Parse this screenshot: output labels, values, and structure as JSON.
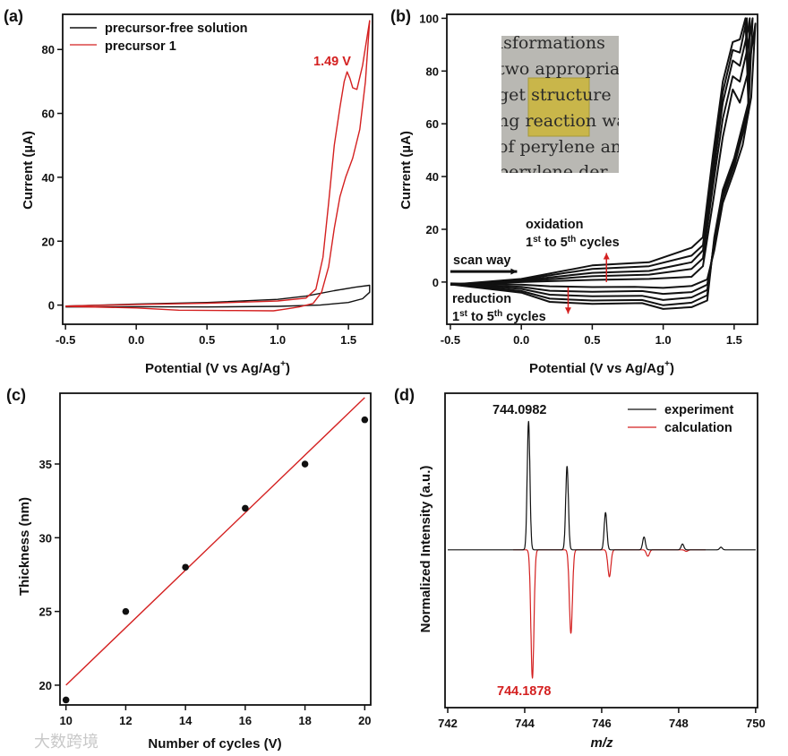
{
  "colors": {
    "black": "#111111",
    "red": "#d42020",
    "photo_bg": "#b9b8b3",
    "film": "#c9b64a"
  },
  "panel_labels": {
    "a": "(a)",
    "b": "(b)",
    "c": "(c)",
    "d": "(d)"
  },
  "watermark": "大数跨境",
  "chart_data": [
    {
      "id": "a",
      "type": "line",
      "xlabel": {
        "main": "Potential (V vs Ag/Ag",
        "sup": "+",
        "end": ")"
      },
      "ylabel": "Current (µA)",
      "xlim": [
        -0.52,
        1.67
      ],
      "ylim": [
        -6,
        91
      ],
      "xticks": [
        -0.5,
        0,
        0.5,
        1.0,
        1.5
      ],
      "xtick_labels": [
        "-0.5",
        "0.0",
        "0.5",
        "1.0",
        "1.5"
      ],
      "yticks": [
        0,
        20,
        40,
        60,
        80
      ],
      "ytick_labels": [
        "0",
        "20",
        "40",
        "60",
        "80"
      ],
      "legend": {
        "placement": "top-left",
        "entries": [
          "precursor-free solution",
          "precursor 1"
        ]
      },
      "annotation": "1.49 V",
      "series": [
        {
          "name": "precursor-free solution",
          "color": "#111111",
          "points": [
            [
              -0.5,
              -0.3
            ],
            [
              0,
              0.3
            ],
            [
              0.5,
              0.8
            ],
            [
              1.0,
              1.8
            ],
            [
              1.2,
              2.8
            ],
            [
              1.4,
              4.5
            ],
            [
              1.55,
              5.6
            ],
            [
              1.65,
              6.2
            ],
            [
              1.65,
              4
            ],
            [
              1.6,
              2
            ],
            [
              1.5,
              0.8
            ],
            [
              1.3,
              0
            ],
            [
              1.0,
              -0.4
            ],
            [
              0.5,
              -0.6
            ],
            [
              0,
              -0.5
            ],
            [
              -0.5,
              -0.6
            ]
          ]
        },
        {
          "name": "precursor 1",
          "color": "#d42020",
          "points": [
            [
              -0.5,
              -0.3
            ],
            [
              0,
              0.2
            ],
            [
              0.5,
              0.6
            ],
            [
              1.0,
              1.3
            ],
            [
              1.2,
              2.2
            ],
            [
              1.27,
              5
            ],
            [
              1.32,
              15
            ],
            [
              1.36,
              32
            ],
            [
              1.4,
              50
            ],
            [
              1.44,
              62
            ],
            [
              1.47,
              70
            ],
            [
              1.49,
              73
            ],
            [
              1.51,
              71
            ],
            [
              1.53,
              68
            ],
            [
              1.56,
              67.5
            ],
            [
              1.6,
              75
            ],
            [
              1.65,
              89
            ],
            [
              1.62,
              70
            ],
            [
              1.58,
              55
            ],
            [
              1.53,
              46
            ],
            [
              1.48,
              40
            ],
            [
              1.44,
              34
            ],
            [
              1.4,
              24
            ],
            [
              1.36,
              12
            ],
            [
              1.31,
              4
            ],
            [
              1.25,
              0.5
            ],
            [
              1.15,
              -0.6
            ],
            [
              1.05,
              -1.3
            ],
            [
              0.97,
              -1.8
            ],
            [
              0.7,
              -1.7
            ],
            [
              0.3,
              -1.6
            ],
            [
              0,
              -0.9
            ],
            [
              -0.5,
              -0.4
            ]
          ]
        }
      ]
    },
    {
      "id": "b",
      "type": "line",
      "xlabel": {
        "main": "Potential (V vs Ag/Ag",
        "sup": "+",
        "end": ")"
      },
      "ylabel": "Current (µA)",
      "xlim": [
        -0.525,
        1.665
      ],
      "ylim": [
        -16,
        101.5
      ],
      "xticks": [
        -0.5,
        0,
        0.5,
        1.0,
        1.5
      ],
      "xtick_labels": [
        "-0.5",
        "0.0",
        "0.5",
        "1.0",
        "1.5"
      ],
      "yticks": [
        0,
        20,
        40,
        60,
        80,
        100
      ],
      "ytick_labels": [
        "0",
        "20",
        "40",
        "60",
        "80",
        "100"
      ],
      "annotations": {
        "oxidation": "oxidation",
        "reduction": "reduction",
        "cycles": {
          "n1": "1",
          "s1": "st",
          "mid": " to 5",
          "s2": "th",
          "end": " cycles"
        },
        "scan_way": "scan way"
      },
      "arrows": {
        "oxidation": {
          "x": 0.6,
          "from": 0,
          "to": 11
        },
        "reduction": {
          "x": 0.33,
          "from": -2,
          "to": -12
        },
        "scan": {
          "y": 0.9,
          "from": -0.5,
          "to": -0.03
        }
      },
      "inset_photo_text": [
        "isformations",
        "two appropria",
        "get  structure",
        "ng reaction wa",
        "of perylene an",
        "perylene  der"
      ],
      "series": [
        {
          "name": "cycle 1",
          "points": [
            [
              -0.5,
              -1
            ],
            [
              0,
              0
            ],
            [
              0.5,
              0.8
            ],
            [
              0.9,
              1.2
            ],
            [
              1.2,
              2
            ],
            [
              1.28,
              6
            ],
            [
              1.35,
              30
            ],
            [
              1.42,
              55
            ],
            [
              1.49,
              73
            ],
            [
              1.54,
              68
            ],
            [
              1.6,
              80
            ],
            [
              1.65,
              98
            ],
            [
              1.62,
              70
            ],
            [
              1.56,
              52
            ],
            [
              1.5,
              42
            ],
            [
              1.42,
              30
            ],
            [
              1.36,
              12
            ],
            [
              1.31,
              1
            ],
            [
              1.2,
              -1.5
            ],
            [
              1.0,
              -2.2
            ],
            [
              0.8,
              -1.8
            ],
            [
              0.5,
              -1.9
            ],
            [
              0.2,
              -1.6
            ],
            [
              0,
              -1
            ],
            [
              -0.5,
              -0.5
            ]
          ]
        },
        {
          "name": "cycle 2",
          "points": [
            [
              -0.5,
              -1
            ],
            [
              0,
              0.3
            ],
            [
              0.5,
              2.2
            ],
            [
              0.9,
              2.8
            ],
            [
              1.2,
              5
            ],
            [
              1.28,
              9
            ],
            [
              1.35,
              36
            ],
            [
              1.42,
              62
            ],
            [
              1.49,
              78
            ],
            [
              1.54,
              76
            ],
            [
              1.6,
              90
            ],
            [
              1.63,
              100
            ],
            [
              1.6,
              64
            ],
            [
              1.5,
              44
            ],
            [
              1.42,
              32
            ],
            [
              1.36,
              14
            ],
            [
              1.31,
              -1
            ],
            [
              1.2,
              -3.8
            ],
            [
              1.0,
              -4.5
            ],
            [
              0.85,
              -3.4
            ],
            [
              0.5,
              -3.7
            ],
            [
              0.2,
              -3.3
            ],
            [
              0,
              -1.8
            ],
            [
              -0.5,
              -0.6
            ]
          ]
        },
        {
          "name": "cycle 3",
          "points": [
            [
              -0.5,
              -1
            ],
            [
              0,
              0.6
            ],
            [
              0.5,
              3.5
            ],
            [
              0.9,
              4.2
            ],
            [
              1.2,
              7.5
            ],
            [
              1.28,
              12
            ],
            [
              1.35,
              40
            ],
            [
              1.42,
              68
            ],
            [
              1.49,
              84
            ],
            [
              1.54,
              82
            ],
            [
              1.6,
              96
            ],
            [
              1.61,
              100
            ],
            [
              1.6,
              66
            ],
            [
              1.5,
              45
            ],
            [
              1.42,
              33
            ],
            [
              1.36,
              15
            ],
            [
              1.31,
              -3
            ],
            [
              1.2,
              -5.8
            ],
            [
              1.0,
              -6.8
            ],
            [
              0.85,
              -5.2
            ],
            [
              0.5,
              -5.4
            ],
            [
              0.2,
              -4.8
            ],
            [
              0,
              -2.6
            ],
            [
              -0.5,
              -0.7
            ]
          ]
        },
        {
          "name": "cycle 4",
          "points": [
            [
              -0.5,
              -1
            ],
            [
              0,
              0.9
            ],
            [
              0.5,
              5
            ],
            [
              0.9,
              6
            ],
            [
              1.2,
              10
            ],
            [
              1.28,
              14
            ],
            [
              1.35,
              44
            ],
            [
              1.42,
              72
            ],
            [
              1.49,
              88
            ],
            [
              1.54,
              87
            ],
            [
              1.59,
              100
            ],
            [
              1.6,
              67
            ],
            [
              1.5,
              46
            ],
            [
              1.42,
              34
            ],
            [
              1.36,
              16
            ],
            [
              1.31,
              -5
            ],
            [
              1.2,
              -7.8
            ],
            [
              1.0,
              -8.8
            ],
            [
              0.85,
              -6.8
            ],
            [
              0.5,
              -7
            ],
            [
              0.2,
              -6.3
            ],
            [
              0,
              -3.4
            ],
            [
              -0.5,
              -0.8
            ]
          ]
        },
        {
          "name": "cycle 5",
          "points": [
            [
              -0.5,
              -1
            ],
            [
              0,
              1.2
            ],
            [
              0.5,
              6.3
            ],
            [
              0.9,
              7.5
            ],
            [
              1.2,
              13
            ],
            [
              1.28,
              17
            ],
            [
              1.35,
              48
            ],
            [
              1.42,
              76
            ],
            [
              1.49,
              91
            ],
            [
              1.54,
              92
            ],
            [
              1.58,
              100
            ],
            [
              1.6,
              68
            ],
            [
              1.5,
              47
            ],
            [
              1.42,
              35
            ],
            [
              1.36,
              17
            ],
            [
              1.31,
              -7
            ],
            [
              1.2,
              -9.5
            ],
            [
              1.0,
              -10.2
            ],
            [
              0.85,
              -8
            ],
            [
              0.5,
              -8.3
            ],
            [
              0.2,
              -7.5
            ],
            [
              0,
              -4
            ],
            [
              -0.5,
              -0.9
            ]
          ]
        }
      ]
    },
    {
      "id": "c",
      "type": "scatter",
      "xlabel": "Number of cycles (V)",
      "ylabel": "Thickness (nm)",
      "xlim": [
        9.8,
        20.2
      ],
      "ylim": [
        18.66,
        39.8
      ],
      "xticks": [
        10,
        12,
        14,
        16,
        18,
        20
      ],
      "xtick_labels": [
        "10",
        "12",
        "14",
        "16",
        "18",
        "20"
      ],
      "yticks": [
        20,
        25,
        30,
        35
      ],
      "ytick_labels": [
        "20",
        "25",
        "30",
        "35"
      ],
      "x": [
        10,
        12,
        14,
        16,
        18,
        20
      ],
      "y": [
        19,
        25,
        28,
        32,
        35,
        38
      ],
      "fit": {
        "x": [
          10,
          20
        ],
        "y": [
          20,
          39.5
        ],
        "color": "#d42020"
      }
    },
    {
      "id": "d",
      "type": "line",
      "xlabel": "m/z",
      "ylabel": "Normalized Intensity (a.u.)",
      "xlim": [
        741.93,
        750.05
      ],
      "ylim": [
        -1.23,
        1.22
      ],
      "xticks": [
        742,
        744,
        746,
        748,
        750
      ],
      "xtick_labels": [
        "742",
        "744",
        "746",
        "748",
        "750"
      ],
      "legend": {
        "placement": "top-right",
        "entries": [
          "experiment",
          "calculation"
        ]
      },
      "annotations": {
        "experiment_peak": "744.0982",
        "calculation_peak": "744.1878"
      },
      "series": [
        {
          "name": "experiment",
          "color": "#111111",
          "range": [
            742,
            750
          ],
          "width": 0.035,
          "peaks": [
            [
              744.1,
              1.0
            ],
            [
              745.1,
              0.65
            ],
            [
              746.1,
              0.29
            ],
            [
              747.1,
              0.1
            ],
            [
              748.1,
              0.045
            ],
            [
              749.1,
              0.02
            ]
          ]
        },
        {
          "name": "calculation",
          "color": "#d42020",
          "range": [
            743.7,
            748.7
          ],
          "width": 0.04,
          "peaks": [
            [
              744.2,
              -1.0
            ],
            [
              745.2,
              -0.65
            ],
            [
              746.2,
              -0.21
            ],
            [
              747.2,
              -0.05
            ],
            [
              748.2,
              -0.012
            ]
          ]
        }
      ]
    }
  ]
}
